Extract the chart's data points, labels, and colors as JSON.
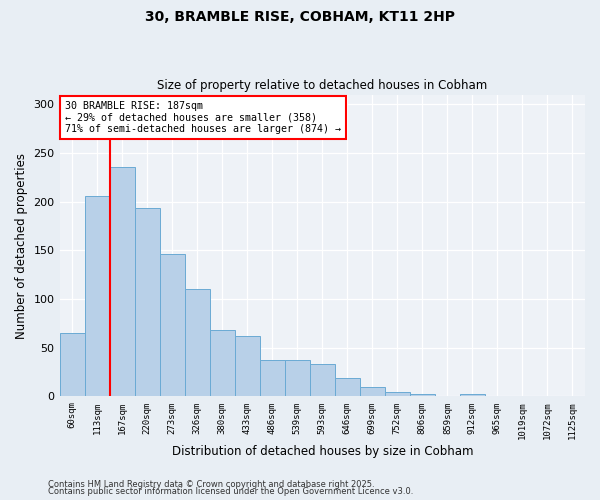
{
  "title": "30, BRAMBLE RISE, COBHAM, KT11 2HP",
  "subtitle": "Size of property relative to detached houses in Cobham",
  "xlabel": "Distribution of detached houses by size in Cobham",
  "ylabel": "Number of detached properties",
  "bin_labels": [
    "60sqm",
    "113sqm",
    "167sqm",
    "220sqm",
    "273sqm",
    "326sqm",
    "380sqm",
    "433sqm",
    "486sqm",
    "539sqm",
    "593sqm",
    "646sqm",
    "699sqm",
    "752sqm",
    "806sqm",
    "859sqm",
    "912sqm",
    "965sqm",
    "1019sqm",
    "1072sqm",
    "1125sqm"
  ],
  "bar_heights": [
    65,
    206,
    236,
    194,
    146,
    110,
    68,
    62,
    37,
    37,
    33,
    19,
    10,
    5,
    3,
    0,
    3,
    0,
    0,
    0,
    0
  ],
  "bar_color": "#b8d0e8",
  "bar_edge_color": "#6aaad4",
  "ylim": [
    0,
    310
  ],
  "yticks": [
    0,
    50,
    100,
    150,
    200,
    250,
    300
  ],
  "vline_position": 1.5,
  "annotation_line1": "30 BRAMBLE RISE: 187sqm",
  "annotation_line2": "← 29% of detached houses are smaller (358)",
  "annotation_line3": "71% of semi-detached houses are larger (874) →",
  "footer1": "Contains HM Land Registry data © Crown copyright and database right 2025.",
  "footer2": "Contains public sector information licensed under the Open Government Licence v3.0.",
  "background_color": "#e8eef4",
  "plot_background": "#eef2f7",
  "grid_color": "#ffffff"
}
